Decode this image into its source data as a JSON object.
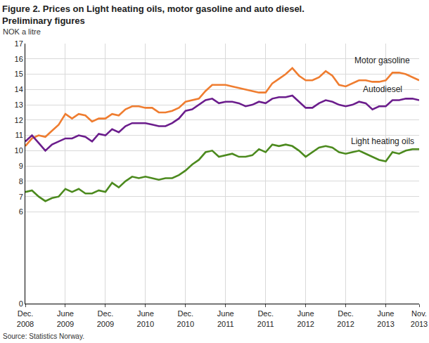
{
  "chart_data": {
    "type": "line",
    "title": "Figure 2. Prices on Light heating oils, motor gasoline and auto diesel.\nPreliminary figures",
    "y_label": "NOK a litre",
    "source": "Source: Statistics Norway.",
    "categories": [
      "Dec. 2008",
      null,
      null,
      null,
      null,
      null,
      "June 2009",
      null,
      null,
      null,
      null,
      null,
      "Dec. 2009",
      null,
      null,
      null,
      null,
      null,
      "June 2010",
      null,
      null,
      null,
      null,
      null,
      "Dec. 2010",
      null,
      null,
      null,
      null,
      null,
      "June 2011",
      null,
      null,
      null,
      null,
      null,
      "Dec. 2011",
      null,
      null,
      null,
      null,
      null,
      "June 2012",
      null,
      null,
      null,
      null,
      null,
      "Dec. 2012",
      null,
      null,
      null,
      null,
      null,
      "June 2013",
      null,
      null,
      null,
      null,
      "Nov. 2013"
    ],
    "series": [
      {
        "name": "Motor gasoline",
        "color": "#ef7d30",
        "values": [
          10.3,
          10.8,
          11.0,
          10.9,
          11.3,
          11.7,
          12.4,
          12.1,
          12.4,
          12.3,
          11.9,
          12.1,
          12.1,
          12.4,
          12.3,
          12.7,
          12.9,
          12.9,
          12.8,
          12.8,
          12.5,
          12.5,
          12.6,
          12.8,
          13.2,
          13.3,
          13.4,
          13.9,
          14.3,
          14.3,
          14.3,
          14.2,
          14.1,
          14.0,
          13.9,
          13.8,
          13.8,
          14.4,
          14.7,
          15.0,
          15.4,
          14.9,
          14.6,
          14.6,
          14.8,
          15.2,
          14.9,
          14.3,
          14.2,
          14.4,
          14.6,
          14.6,
          14.5,
          14.5,
          14.6,
          15.1,
          15.1,
          15.0,
          14.8,
          14.6
        ]
      },
      {
        "name": "Autodiesel",
        "color": "#6b1d8c",
        "values": [
          10.6,
          11.0,
          10.5,
          10.0,
          10.4,
          10.6,
          10.8,
          10.8,
          11.0,
          10.9,
          10.6,
          11.1,
          11.0,
          11.4,
          11.2,
          11.6,
          11.8,
          11.8,
          11.8,
          11.7,
          11.6,
          11.6,
          11.8,
          12.1,
          12.6,
          12.7,
          13.0,
          13.3,
          13.4,
          13.1,
          13.2,
          13.2,
          13.1,
          12.9,
          13.0,
          13.2,
          13.1,
          13.4,
          13.5,
          13.5,
          13.6,
          13.2,
          12.8,
          12.8,
          13.1,
          13.3,
          13.2,
          13.0,
          12.9,
          13.0,
          13.2,
          13.1,
          12.7,
          12.9,
          12.9,
          13.3,
          13.3,
          13.4,
          13.4,
          13.3
        ]
      },
      {
        "name": "Light heating oils",
        "color": "#4c8a1e",
        "values": [
          7.3,
          7.4,
          7.0,
          6.7,
          6.9,
          7.0,
          7.5,
          7.3,
          7.5,
          7.2,
          7.2,
          7.4,
          7.3,
          7.9,
          7.6,
          8.0,
          8.3,
          8.2,
          8.3,
          8.2,
          8.1,
          8.2,
          8.2,
          8.4,
          8.7,
          9.1,
          9.4,
          9.9,
          10.0,
          9.6,
          9.7,
          9.8,
          9.6,
          9.6,
          9.7,
          10.1,
          9.9,
          10.4,
          10.3,
          10.4,
          10.3,
          10.0,
          9.6,
          9.9,
          10.2,
          10.3,
          10.2,
          9.9,
          9.8,
          9.9,
          10.0,
          9.8,
          9.6,
          9.4,
          9.3,
          9.9,
          9.8,
          10.0,
          10.1,
          10.1
        ]
      }
    ],
    "ylim": [
      0,
      17
    ],
    "yticks": [
      0,
      6,
      7,
      8,
      9,
      10,
      11,
      12,
      13,
      14,
      15,
      16,
      17
    ],
    "grid": true
  }
}
